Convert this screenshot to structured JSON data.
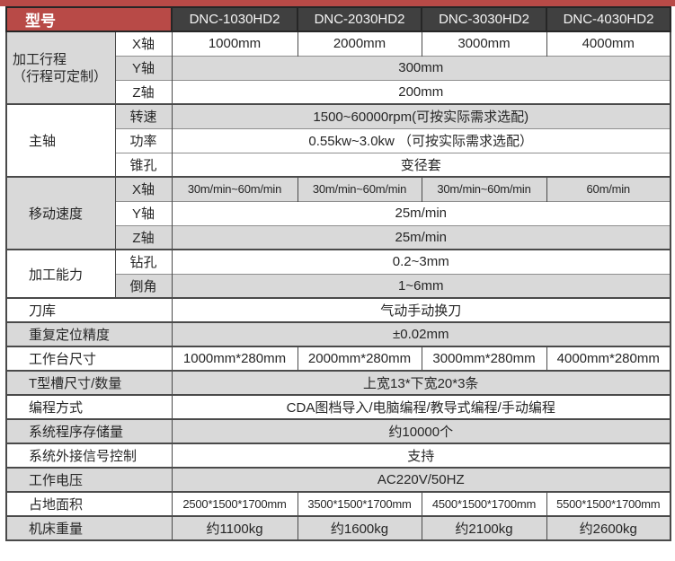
{
  "colors": {
    "accent-red": "#b84a47",
    "header-dark": "#404040",
    "header-text": "#f5f5f5",
    "row-gray": "#d9d9d9",
    "row-white": "#ffffff",
    "border-strong": "#4a4a4a",
    "border-light": "#8f8f8f",
    "body-text": "#262626"
  },
  "table": {
    "corner_label": "型号",
    "models": [
      "DNC-1030HD2",
      "DNC-2030HD2",
      "DNC-3030HD2",
      "DNC-4030HD2"
    ],
    "travel": {
      "label": "加工行程",
      "note": "（行程可定制）",
      "x_label": "X轴",
      "x_values": [
        "1000mm",
        "2000mm",
        "3000mm",
        "4000mm"
      ],
      "y_label": "Y轴",
      "y_value": "300mm",
      "z_label": "Z轴",
      "z_value": "200mm"
    },
    "spindle": {
      "label": "主轴",
      "speed_label": "转速",
      "speed_value": "1500~60000rpm(可按实际需求选配)",
      "power_label": "功率",
      "power_value": "0.55kw~3.0kw （可按实际需求选配）",
      "taper_label": "锥孔",
      "taper_value": "变径套"
    },
    "feed": {
      "label": "移动速度",
      "x_label": "X轴",
      "x_values": [
        "30m/min~60m/min",
        "30m/min~60m/min",
        "30m/min~60m/min",
        "60m/min"
      ],
      "y_label": "Y轴",
      "y_value": "25m/min",
      "z_label": "Z轴",
      "z_value": "25m/min"
    },
    "capability": {
      "label": "加工能力",
      "drill_label": "钻孔",
      "drill_value": "0.2~3mm",
      "chamfer_label": "倒角",
      "chamfer_value": "1~6mm"
    },
    "tool_magazine": {
      "label": "刀库",
      "value": "气动手动换刀"
    },
    "repeat_accuracy": {
      "label": "重复定位精度",
      "value": "±0.02mm"
    },
    "worktable_size": {
      "label": "工作台尺寸",
      "values": [
        "1000mm*280mm",
        "2000mm*280mm",
        "3000mm*280mm",
        "4000mm*280mm"
      ]
    },
    "t_slot": {
      "label": "T型槽尺寸/数量",
      "value": "上宽13*下宽20*3条"
    },
    "programming": {
      "label": "编程方式",
      "value": "CDA图档导入/电脑编程/教导式编程/手动编程"
    },
    "program_storage": {
      "label": "系统程序存储量",
      "value": "约10000个"
    },
    "external_signal": {
      "label": "系统外接信号控制",
      "value": "支持"
    },
    "voltage": {
      "label": "工作电压",
      "value": "AC220V/50HZ"
    },
    "footprint": {
      "label": "占地面积",
      "values": [
        "2500*1500*1700mm",
        "3500*1500*1700mm",
        "4500*1500*1700mm",
        "5500*1500*1700mm"
      ]
    },
    "weight": {
      "label": "机床重量",
      "values": [
        "约1100kg",
        "约1600kg",
        "约2100kg",
        "约2600kg"
      ]
    }
  }
}
